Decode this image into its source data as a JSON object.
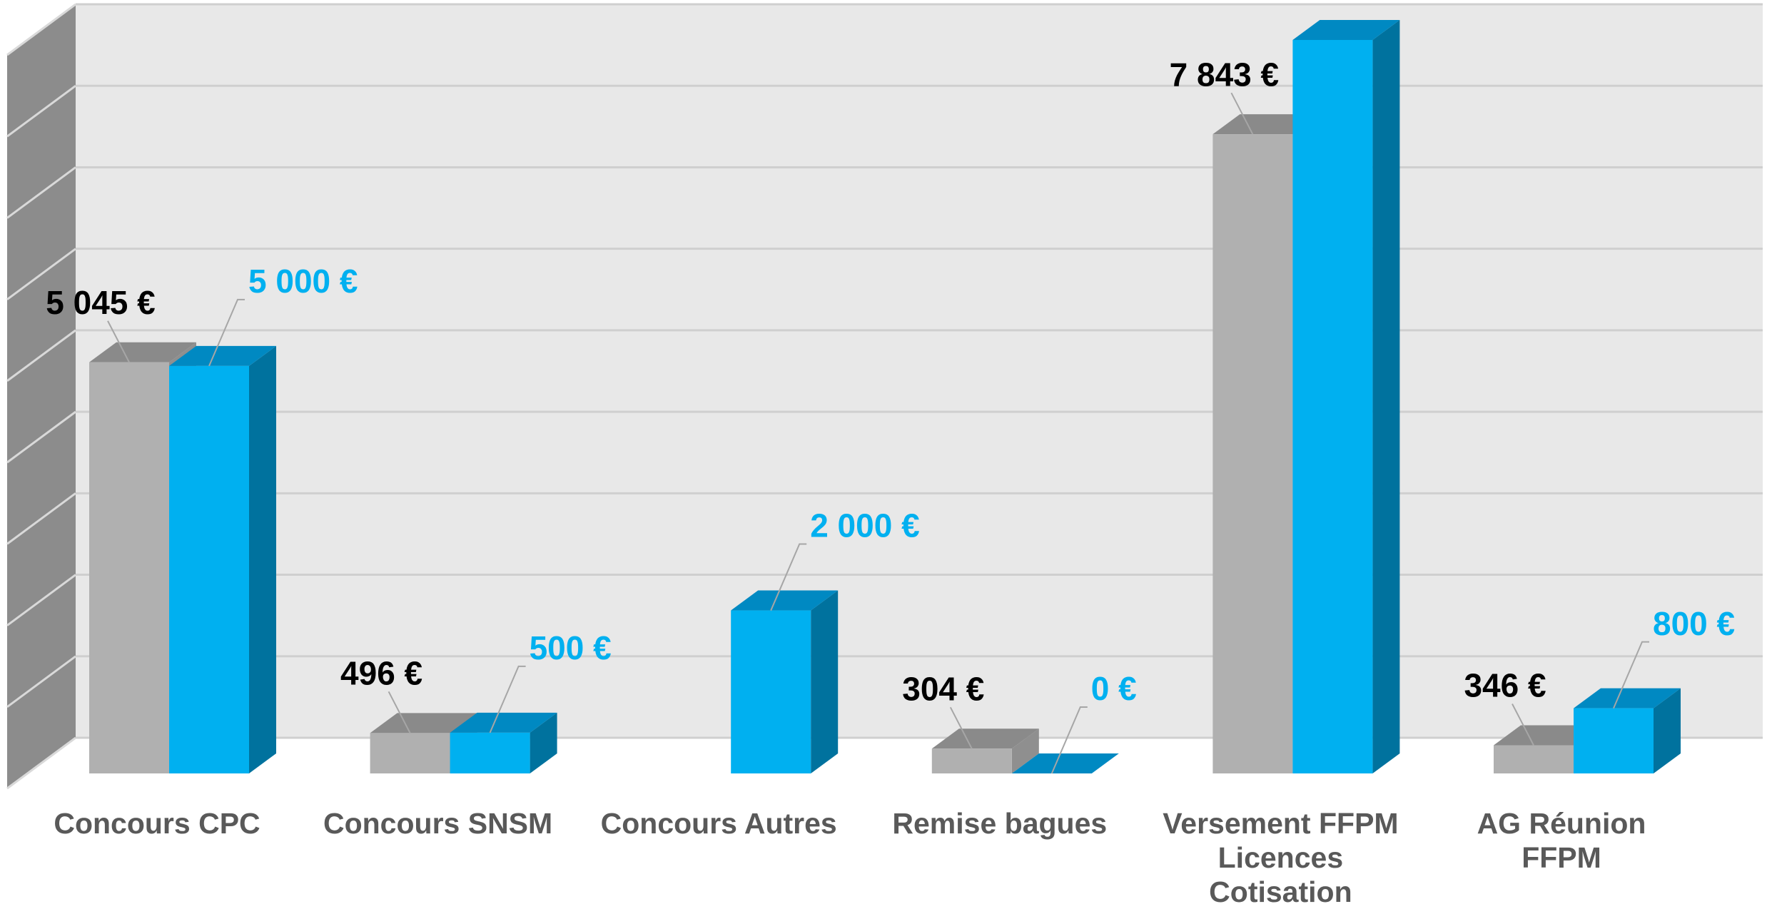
{
  "chart_data": {
    "type": "bar3d",
    "categories": [
      "Concours CPC",
      "Concours SNSM",
      "Concours Autres",
      "Remise bagues",
      "Versement FFPM\nLicences\nCotisation",
      "AG Réunion\nFFPM"
    ],
    "series": [
      {
        "color": "#b0b0b0",
        "label_color": "#000000",
        "values": [
          5045,
          496,
          null,
          304,
          7843,
          346
        ],
        "value_labels": [
          "5 045 €",
          "496 €",
          null,
          "304 €",
          "7 843 €",
          "346 €"
        ]
      },
      {
        "color": "#00b0f0",
        "label_color": "#00b0f0",
        "values": [
          5000,
          500,
          2000,
          0,
          9000,
          800
        ],
        "value_labels": [
          "5 000 €",
          "500 €",
          "2 000 €",
          "0 €",
          null,
          "800 €"
        ]
      }
    ],
    "ylim": [
      0,
      9000
    ],
    "yticks": [
      0,
      1000,
      2000,
      3000,
      4000,
      5000,
      6000,
      7000,
      8000,
      9000
    ],
    "grid": true
  }
}
